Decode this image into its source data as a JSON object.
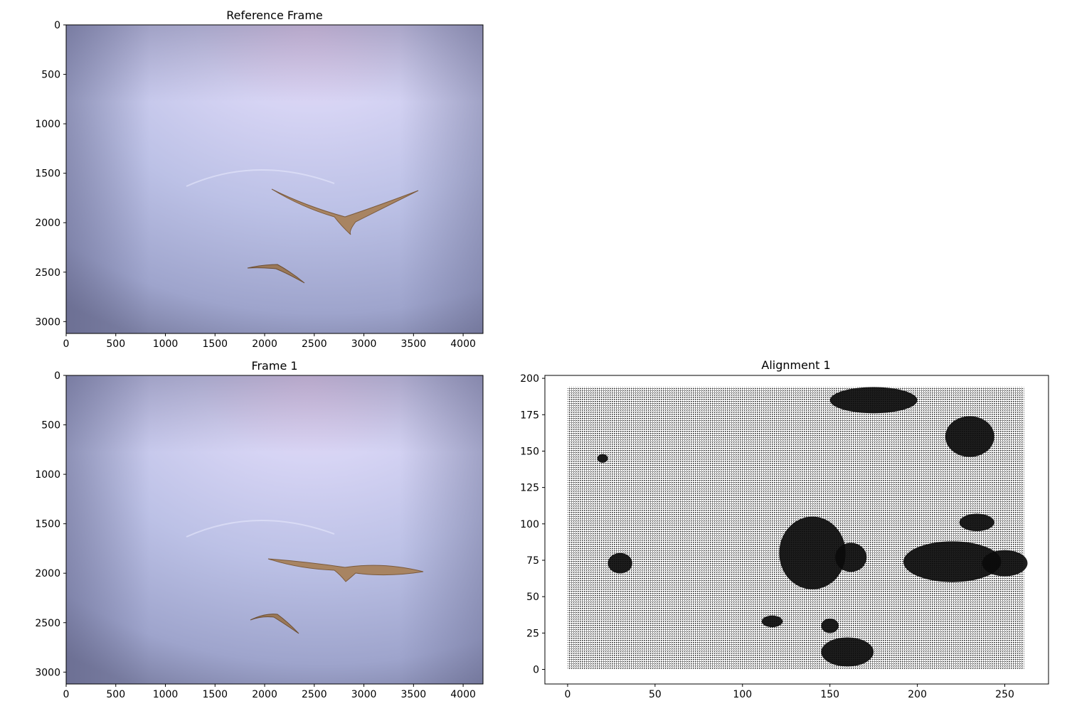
{
  "chart_data": [
    {
      "type": "image",
      "title": "Reference Frame",
      "xlim": [
        0,
        4200
      ],
      "ylim": [
        3120,
        0
      ],
      "xticks": [
        0,
        500,
        1000,
        1500,
        2000,
        2500,
        3000,
        3500,
        4000
      ],
      "yticks": [
        0,
        500,
        1000,
        1500,
        2000,
        2500,
        3000
      ],
      "grid": false
    },
    {
      "type": "image",
      "title": "Frame 1",
      "xlim": [
        0,
        4200
      ],
      "ylim": [
        3120,
        0
      ],
      "xticks": [
        0,
        500,
        1000,
        1500,
        2000,
        2500,
        3000,
        3500,
        4000
      ],
      "yticks": [
        0,
        500,
        1000,
        1500,
        2000,
        2500,
        3000
      ],
      "grid": false
    },
    {
      "type": "quiver",
      "title": "Alignment 1",
      "xlim": [
        -13,
        275
      ],
      "ylim": [
        -10,
        202
      ],
      "grid_extent": {
        "x": [
          0,
          261
        ],
        "y": [
          0,
          194
        ]
      },
      "xticks": [
        0,
        50,
        100,
        150,
        200,
        250
      ],
      "yticks": [
        0,
        25,
        50,
        75,
        100,
        125,
        150,
        175,
        200
      ],
      "grid": false,
      "dense_regions": [
        {
          "cx": 140,
          "cy": 80,
          "rx": 19,
          "ry": 25
        },
        {
          "cx": 162,
          "cy": 77,
          "rx": 9,
          "ry": 10
        },
        {
          "cx": 220,
          "cy": 74,
          "rx": 28,
          "ry": 14
        },
        {
          "cx": 250,
          "cy": 73,
          "rx": 13,
          "ry": 9
        },
        {
          "cx": 234,
          "cy": 101,
          "rx": 10,
          "ry": 6
        },
        {
          "cx": 30,
          "cy": 73,
          "rx": 7,
          "ry": 7
        },
        {
          "cx": 160,
          "cy": 12,
          "rx": 15,
          "ry": 10
        },
        {
          "cx": 150,
          "cy": 30,
          "rx": 5,
          "ry": 5
        },
        {
          "cx": 117,
          "cy": 33,
          "rx": 6,
          "ry": 4
        },
        {
          "cx": 20,
          "cy": 145,
          "rx": 3,
          "ry": 3
        },
        {
          "cx": 175,
          "cy": 185,
          "rx": 25,
          "ry": 9
        },
        {
          "cx": 230,
          "cy": 160,
          "rx": 14,
          "ry": 14
        }
      ]
    }
  ]
}
